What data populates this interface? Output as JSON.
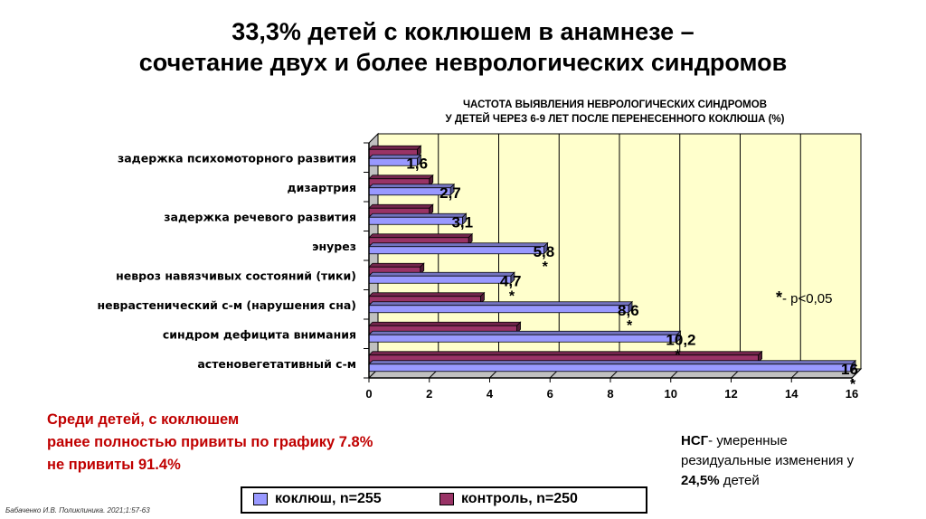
{
  "slide": {
    "title_line1": "33,3% детей с коклюшем в анамнезе –",
    "title_line2": "сочетание двух и более неврологических синдромов",
    "source": "Бабаченко И.В. Поликлиника. 2021;1:57-63"
  },
  "note": {
    "line1": "Среди детей, с коклюшем",
    "line2": "ранее полностью привиты по графику 7.8%",
    "line3": "не привиты 91.4%",
    "color": "#c00000"
  },
  "nsg": {
    "abbr": "НСГ",
    "text1": "- умеренные",
    "text2": "резидуальные изменения у",
    "pct": "24,5%",
    "text3": " детей"
  },
  "chart_data": {
    "type": "bar",
    "orientation": "horizontal",
    "title_line1": "ЧАСТОТА ВЫЯВЛЕНИЯ НЕВРОЛОГИЧЕСКИХ СИНДРОМОВ",
    "title_line2": "У ДЕТЕЙ ЧЕРЕЗ 6-9 ЛЕТ ПОСЛЕ ПЕРЕНЕСЕННОГО КОКЛЮША (%)",
    "categories": [
      "задержка психомоторного развития",
      "дизартрия",
      "задержка речевого развития",
      "энурез",
      "невроз навязчивых состояний (тики)",
      "неврастенический с-м (нарушения сна)",
      "синдром дефицита внимания",
      "астеновегетативный с-м"
    ],
    "series": [
      {
        "name": "коклюш, n=255",
        "values": [
          1.6,
          2.7,
          3.1,
          5.8,
          4.7,
          8.6,
          10.2,
          16
        ],
        "color": "#9999ff"
      },
      {
        "name": "контроль, n=250",
        "values": [
          1.6,
          2.0,
          2.0,
          3.3,
          1.7,
          3.7,
          4.9,
          12.9
        ],
        "color": "#993366"
      }
    ],
    "data_labels": [
      "1,6",
      "2,7",
      "3,1",
      "5,8",
      "4,7",
      "8,6",
      "10,2",
      "16"
    ],
    "significance_marks": [
      {
        "category": "энурез",
        "mark": "*"
      },
      {
        "category": "невроз навязчивых состояний (тики)",
        "mark": "*"
      },
      {
        "category": "неврастенический с-м (нарушения сна)",
        "mark": "*"
      },
      {
        "category": "синдром дефицита внимания",
        "mark": "*"
      },
      {
        "category": "астеновегетативный с-м",
        "mark": "*"
      }
    ],
    "annotation": {
      "star": "*",
      "text": "- p<0,05"
    },
    "xticks": [
      "0",
      "2",
      "4",
      "6",
      "8",
      "10",
      "12",
      "14",
      "16"
    ],
    "xlim": [
      0,
      16
    ],
    "grid": true,
    "plot_background": "#ffffcc",
    "legend_position": "bottom"
  }
}
